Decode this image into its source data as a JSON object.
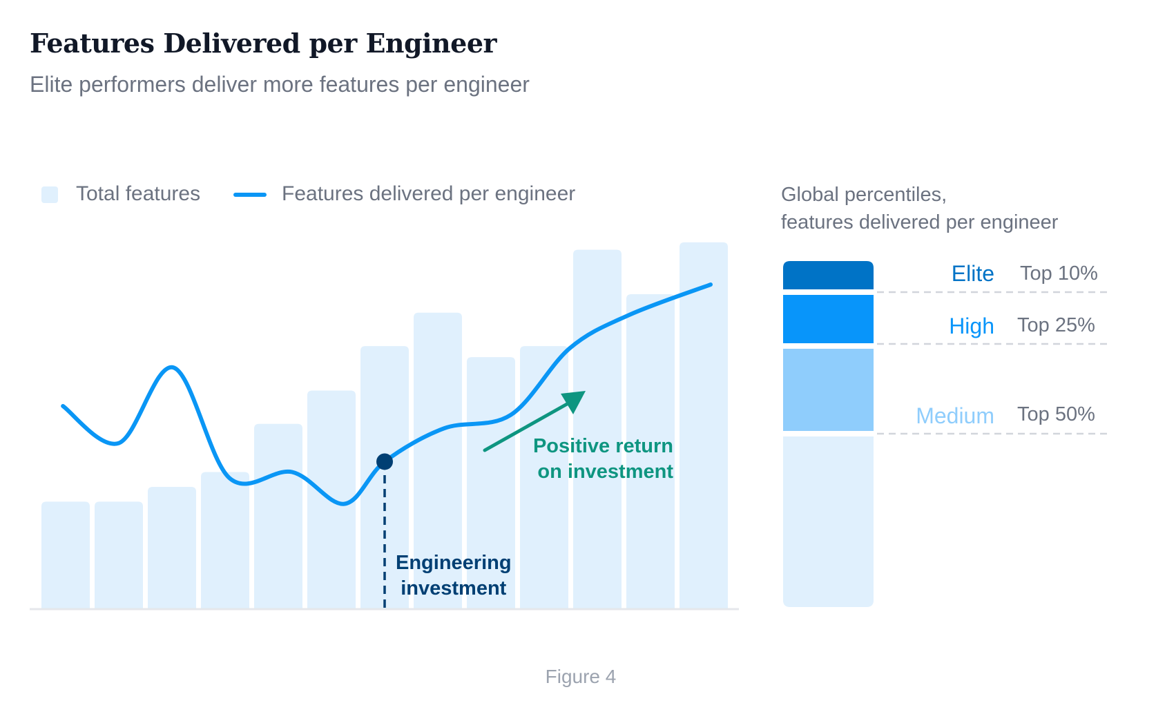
{
  "title": "Features Delivered per Engineer",
  "subtitle": "Elite performers deliver more features per engineer",
  "footer": "Figure 4",
  "colors": {
    "bar": "#e0f0fd",
    "line": "#0a96f5",
    "investment": "#003f73",
    "roi": "#0e9580",
    "elite": "#0073c6",
    "high": "#0895fa",
    "medium": "#8fcdfc",
    "base": "#e0f0fd"
  },
  "chart_data": {
    "type": "bar+line",
    "title": "Features Delivered per Engineer",
    "xlabel": "",
    "ylabel": "",
    "axes_labeled": false,
    "grid": false,
    "legend": {
      "placement": "top-left",
      "entries": [
        "Total features",
        "Features delivered per engineer"
      ]
    },
    "series": [
      {
        "name": "Total features",
        "type": "bar",
        "values": [
          29,
          29,
          33,
          37,
          50,
          59,
          71,
          80,
          68,
          71,
          97,
          85,
          99
        ]
      },
      {
        "name": "Features delivered per engineer",
        "type": "line",
        "x": [
          -0.05,
          1,
          2.03,
          3.08,
          4.26,
          5.24,
          6,
          7.12,
          8.37,
          9.48,
          10.6,
          12.13
        ],
        "y": [
          54.8,
          44.8,
          65.2,
          35.4,
          37,
          28.4,
          39.8,
          48.8,
          52.4,
          70.4,
          79.4,
          87.6
        ]
      }
    ],
    "annotations": [
      {
        "text": [
          "Engineering",
          "investment"
        ],
        "x": 6,
        "y": 39.8
      },
      {
        "text": [
          "Positive return",
          "on investment"
        ],
        "arrow": true
      }
    ]
  },
  "percentiles": {
    "title_lines": [
      "Global percentiles,",
      "features delivered per engineer"
    ],
    "tiers": [
      {
        "label": "Elite",
        "rank": "Top 10%"
      },
      {
        "label": "High",
        "rank": "Top 25%"
      },
      {
        "label": "Medium",
        "rank": "Top 50%"
      }
    ]
  }
}
